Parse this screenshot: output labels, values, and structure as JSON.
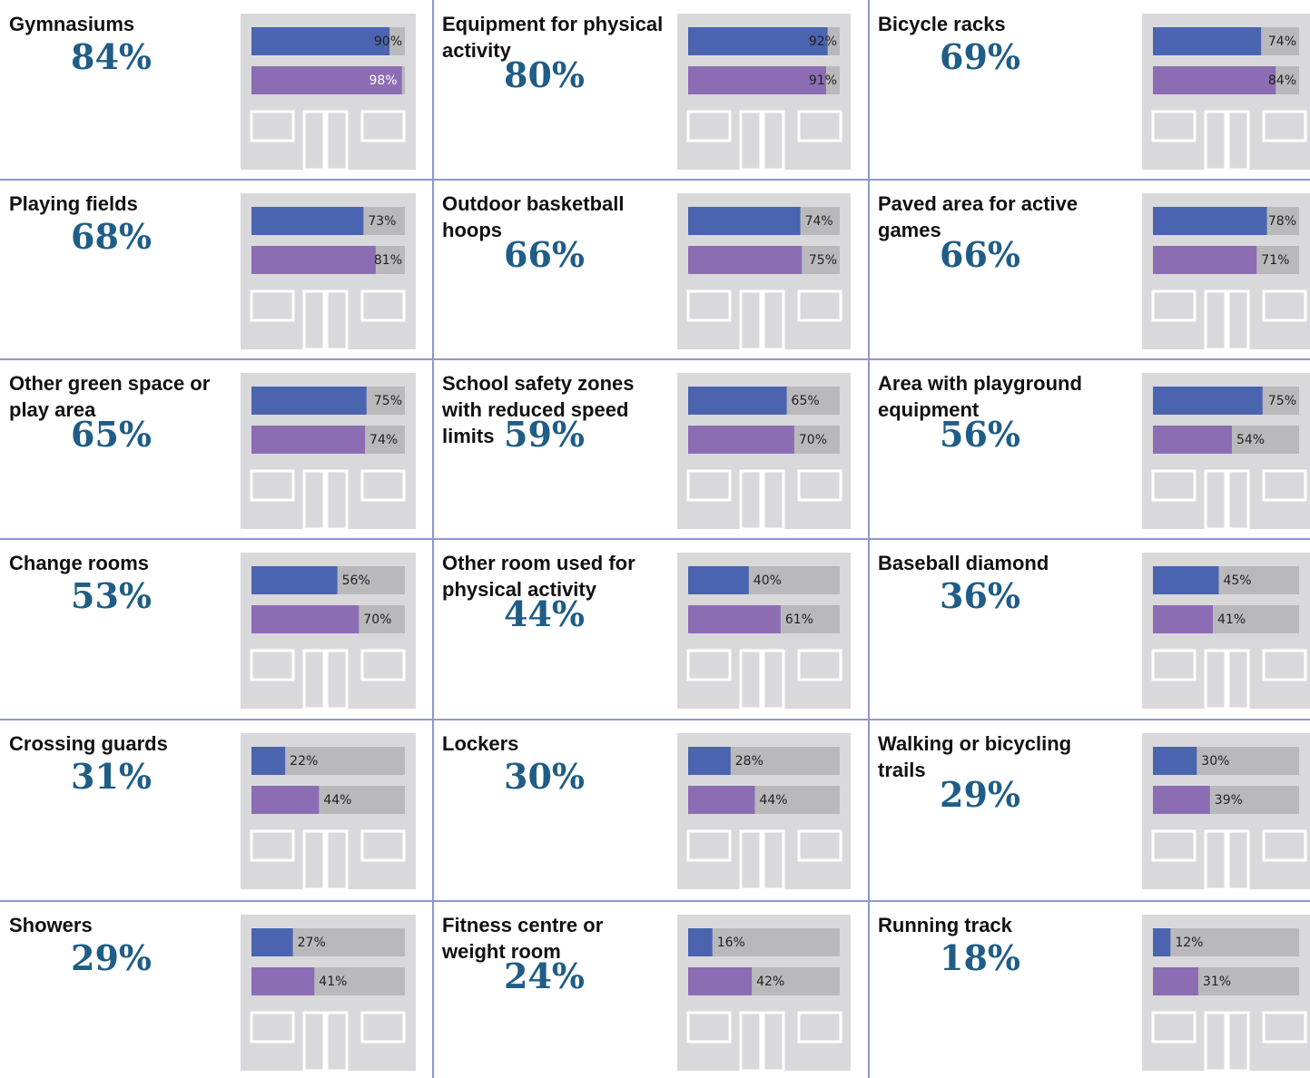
{
  "chart_data": [
    {
      "type": "bar",
      "title": "Gymnasiums",
      "headline": "84%",
      "values": [
        90,
        98
      ],
      "value_labels": [
        "90%",
        "98%"
      ],
      "colors": [
        "#4b64b0",
        "#8c6db4"
      ],
      "xlim": [
        0,
        100
      ]
    },
    {
      "type": "bar",
      "title": "Equipment for physical activity",
      "headline": "80%",
      "values": [
        92,
        91
      ],
      "value_labels": [
        "92%",
        "91%"
      ],
      "colors": [
        "#4b64b0",
        "#8c6db4"
      ],
      "xlim": [
        0,
        100
      ]
    },
    {
      "type": "bar",
      "title": "Bicycle racks",
      "headline": "69%",
      "values": [
        74,
        84
      ],
      "value_labels": [
        "74%",
        "84%"
      ],
      "colors": [
        "#4b64b0",
        "#8c6db4"
      ],
      "xlim": [
        0,
        100
      ]
    },
    {
      "type": "bar",
      "title": "Playing fields",
      "headline": "68%",
      "values": [
        73,
        81
      ],
      "value_labels": [
        "73%",
        "81%"
      ],
      "colors": [
        "#4b64b0",
        "#8c6db4"
      ],
      "xlim": [
        0,
        100
      ]
    },
    {
      "type": "bar",
      "title": "Outdoor basketball hoops",
      "headline": "66%",
      "values": [
        74,
        75
      ],
      "value_labels": [
        "74%",
        "75%"
      ],
      "colors": [
        "#4b64b0",
        "#8c6db4"
      ],
      "xlim": [
        0,
        100
      ]
    },
    {
      "type": "bar",
      "title": "Paved area for active games",
      "headline": "66%",
      "values": [
        78,
        71
      ],
      "value_labels": [
        "78%",
        "71%"
      ],
      "colors": [
        "#4b64b0",
        "#8c6db4"
      ],
      "xlim": [
        0,
        100
      ]
    },
    {
      "type": "bar",
      "title": "Other green space or play area",
      "headline": "65%",
      "values": [
        75,
        74
      ],
      "value_labels": [
        "75%",
        "74%"
      ],
      "colors": [
        "#4b64b0",
        "#8c6db4"
      ],
      "xlim": [
        0,
        100
      ]
    },
    {
      "type": "bar",
      "title": "School safety zones with reduced speed limits",
      "headline": "59%",
      "values": [
        65,
        70
      ],
      "value_labels": [
        "65%",
        "70%"
      ],
      "colors": [
        "#4b64b0",
        "#8c6db4"
      ],
      "xlim": [
        0,
        100
      ]
    },
    {
      "type": "bar",
      "title": "Area with playground equipment",
      "headline": "56%",
      "values": [
        75,
        54
      ],
      "value_labels": [
        "75%",
        "54%"
      ],
      "colors": [
        "#4b64b0",
        "#8c6db4"
      ],
      "xlim": [
        0,
        100
      ]
    },
    {
      "type": "bar",
      "title": "Change rooms",
      "headline": "53%",
      "values": [
        56,
        70
      ],
      "value_labels": [
        "56%",
        "70%"
      ],
      "colors": [
        "#4b64b0",
        "#8c6db4"
      ],
      "xlim": [
        0,
        100
      ]
    },
    {
      "type": "bar",
      "title": "Other room used for physical activity",
      "headline": "44%",
      "values": [
        40,
        61
      ],
      "value_labels": [
        "40%",
        "61%"
      ],
      "colors": [
        "#4b64b0",
        "#8c6db4"
      ],
      "xlim": [
        0,
        100
      ]
    },
    {
      "type": "bar",
      "title": "Baseball diamond",
      "headline": "36%",
      "values": [
        45,
        41
      ],
      "value_labels": [
        "45%",
        "41%"
      ],
      "colors": [
        "#4b64b0",
        "#8c6db4"
      ],
      "xlim": [
        0,
        100
      ]
    },
    {
      "type": "bar",
      "title": "Crossing guards",
      "headline": "31%",
      "values": [
        22,
        44
      ],
      "value_labels": [
        "22%",
        "44%"
      ],
      "colors": [
        "#4b64b0",
        "#8c6db4"
      ],
      "xlim": [
        0,
        100
      ]
    },
    {
      "type": "bar",
      "title": "Lockers",
      "headline": "30%",
      "values": [
        28,
        44
      ],
      "value_labels": [
        "28%",
        "44%"
      ],
      "colors": [
        "#4b64b0",
        "#8c6db4"
      ],
      "xlim": [
        0,
        100
      ]
    },
    {
      "type": "bar",
      "title": "Walking or bicycling trails",
      "headline": "29%",
      "values": [
        30,
        39
      ],
      "value_labels": [
        "30%",
        "39%"
      ],
      "colors": [
        "#4b64b0",
        "#8c6db4"
      ],
      "xlim": [
        0,
        100
      ]
    },
    {
      "type": "bar",
      "title": "Showers",
      "headline": "29%",
      "values": [
        27,
        41
      ],
      "value_labels": [
        "27%",
        "41%"
      ],
      "colors": [
        "#4b64b0",
        "#8c6db4"
      ],
      "xlim": [
        0,
        100
      ]
    },
    {
      "type": "bar",
      "title": "Fitness centre or weight room",
      "headline": "24%",
      "values": [
        16,
        42
      ],
      "value_labels": [
        "16%",
        "42%"
      ],
      "colors": [
        "#4b64b0",
        "#8c6db4"
      ],
      "xlim": [
        0,
        100
      ]
    },
    {
      "type": "bar",
      "title": "Running track",
      "headline": "18%",
      "values": [
        12,
        31
      ],
      "value_labels": [
        "12%",
        "31%"
      ],
      "colors": [
        "#4b64b0",
        "#8c6db4"
      ],
      "xlim": [
        0,
        100
      ]
    }
  ]
}
